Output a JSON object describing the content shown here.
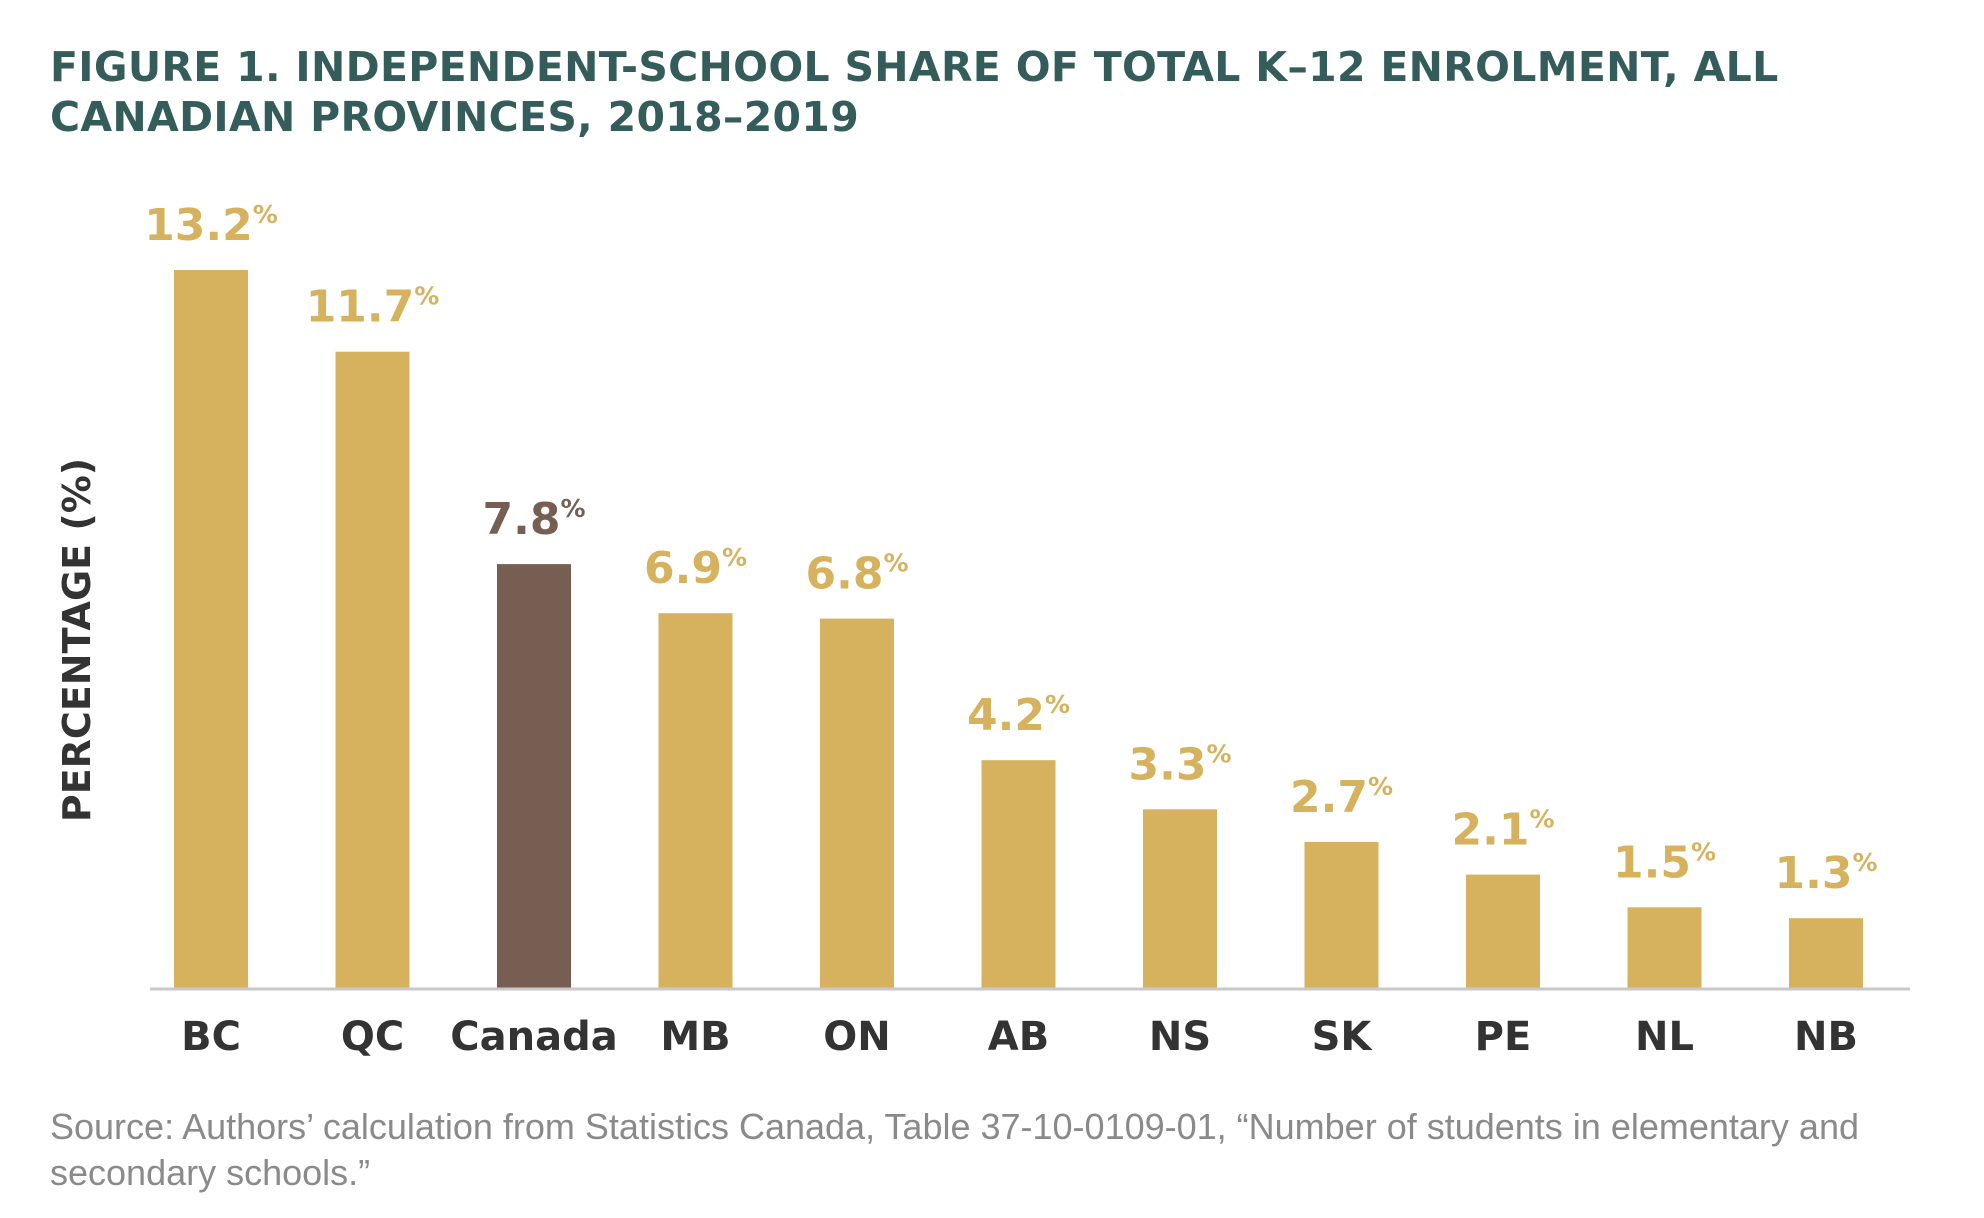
{
  "figure": {
    "title": "FIGURE 1. INDEPENDENT-SCHOOL SHARE OF TOTAL K–12 ENROLMENT, ALL CANADIAN PROVINCES, 2018–2019",
    "source": "Source: Authors’ calculation from Statistics Canada, Table 37-10-0109-01, “Number of students in elementary and secondary schools.”"
  },
  "colors": {
    "title": "#335c5a",
    "province_bar": "#d6b25e",
    "canada_bar": "#765e52",
    "axis": "#c8c8c8",
    "tick_label": "#333333",
    "source_text": "#8a8a8a"
  },
  "chart_data": {
    "type": "bar",
    "ylabel": "PERCENTAGE (%)",
    "xlabel": "",
    "unit_suffix": "%",
    "categories": [
      "BC",
      "QC",
      "Canada",
      "MB",
      "ON",
      "AB",
      "NS",
      "SK",
      "PE",
      "NL",
      "NB"
    ],
    "values": [
      13.2,
      11.7,
      7.8,
      6.9,
      6.8,
      4.2,
      3.3,
      2.7,
      2.1,
      1.5,
      1.3
    ],
    "value_labels": [
      "13.2",
      "11.7",
      "7.8",
      "6.9",
      "6.8",
      "4.2",
      "3.3",
      "2.7",
      "2.1",
      "1.5",
      "1.3"
    ],
    "highlight_category": "Canada",
    "ylim": [
      0,
      13.2
    ],
    "grid": false,
    "legend": "none"
  }
}
